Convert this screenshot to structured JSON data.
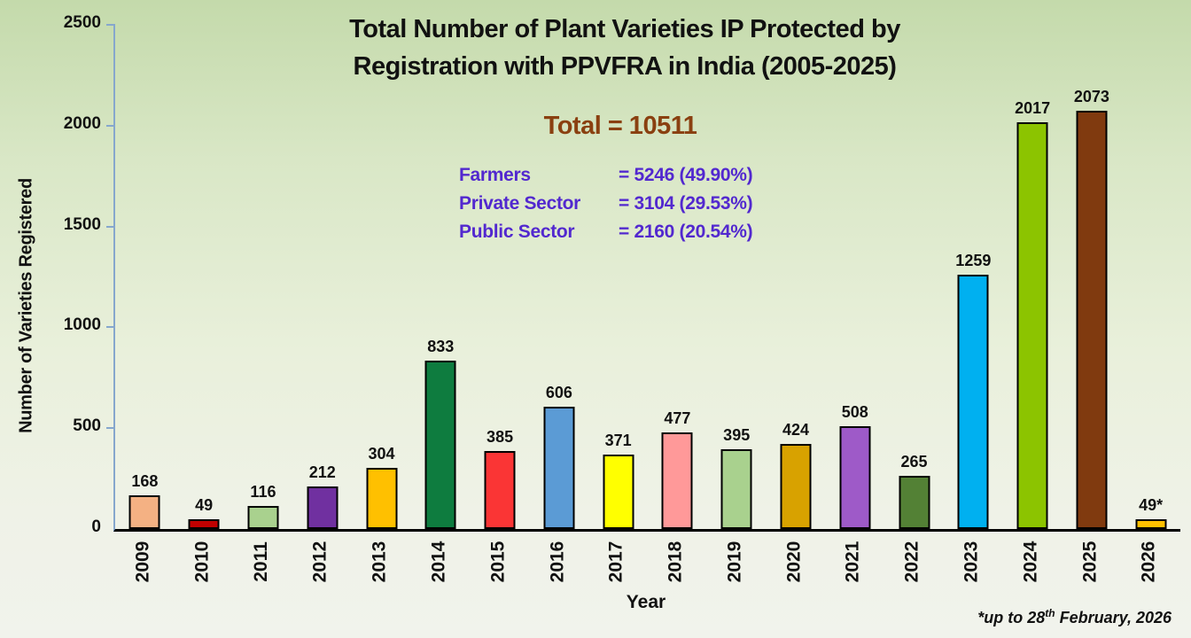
{
  "page": {
    "footnote_parts": {
      "prefix": "*up to 28",
      "sup": "th",
      "suffix": " February, 2026"
    }
  },
  "chart_data": {
    "type": "bar",
    "title_lines": [
      "Total Number of Plant Varieties IP Protected by",
      "Registration with PPVFRA in India (2005-2025)"
    ],
    "total_label": "Total = 10511",
    "breakdown": [
      {
        "label": "Farmers",
        "value": 5246,
        "percent": 49.9,
        "value_text": "= 5246 (49.90%)"
      },
      {
        "label": "Private Sector",
        "value": 3104,
        "percent": 29.53,
        "value_text": "= 3104 (29.53%)"
      },
      {
        "label": "Public Sector",
        "value": 2160,
        "percent": 20.54,
        "value_text": "= 2160 (20.54%)"
      }
    ],
    "ylabel": "Number of Varieties Registered",
    "xlabel": "Year",
    "ylim": [
      0,
      2500
    ],
    "yticks": [
      0,
      500,
      1000,
      1500,
      2000,
      2500
    ],
    "grid": false,
    "categories": [
      "2009",
      "2010",
      "2011",
      "2012",
      "2013",
      "2014",
      "2015",
      "2016",
      "2017",
      "2018",
      "2019",
      "2020",
      "2021",
      "2022",
      "2023",
      "2024",
      "2025",
      "2026"
    ],
    "values": [
      168,
      49,
      116,
      212,
      304,
      833,
      385,
      606,
      371,
      477,
      395,
      424,
      508,
      265,
      1259,
      2017,
      2073,
      49
    ],
    "value_labels": [
      "168",
      "49",
      "116",
      "212",
      "304",
      "833",
      "385",
      "606",
      "371",
      "477",
      "395",
      "424",
      "508",
      "265",
      "1259",
      "2017",
      "2073",
      "49*"
    ],
    "bar_colors": [
      "#F4B183",
      "#C00000",
      "#A9D18E",
      "#7030A0",
      "#FFC000",
      "#0E7C3F",
      "#FA3535",
      "#5B9BD5",
      "#FFFF00",
      "#FF9999",
      "#A9D18E",
      "#D8A200",
      "#9E5AC8",
      "#538135",
      "#00B0F0",
      "#8CC400",
      "#803A0F",
      "#FFC000"
    ],
    "footnote": "*up to 28th February, 2026",
    "colors": {
      "total_text": "#8A4010",
      "breakdown_text": "#5228CF",
      "axis_line": "#86A7CD",
      "bar_border": "#000000",
      "title_text": "#111111"
    }
  }
}
